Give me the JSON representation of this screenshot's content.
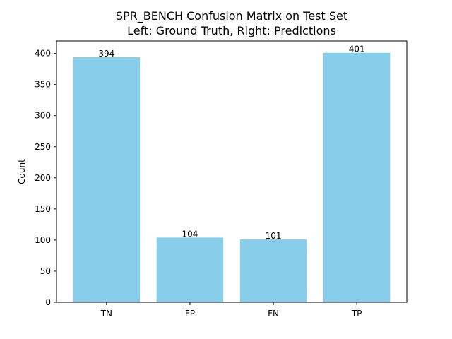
{
  "chart_data": {
    "type": "bar",
    "title_line1": "SPR_BENCH Confusion Matrix on Test Set",
    "title_line2": "Left: Ground Truth, Right: Predictions",
    "xlabel": "",
    "ylabel": "Count",
    "categories": [
      "TN",
      "FP",
      "FN",
      "TP"
    ],
    "values": [
      394,
      104,
      101,
      401
    ],
    "ylim": [
      0,
      420
    ],
    "yticks": [
      0,
      50,
      100,
      150,
      200,
      250,
      300,
      350,
      400
    ],
    "bar_color": "#87CEEB",
    "grid": false,
    "legend": "none"
  }
}
